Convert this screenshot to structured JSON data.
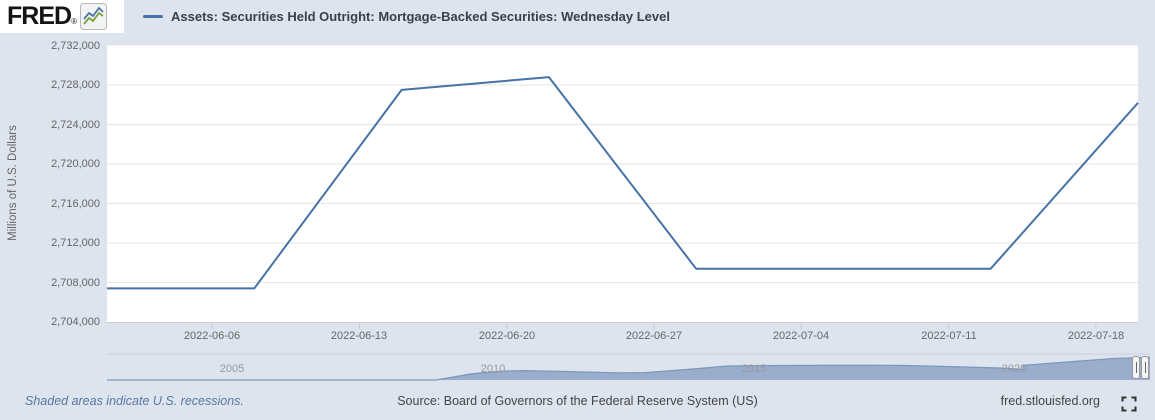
{
  "header": {
    "logo_text": "FRED",
    "logo_reg": "®",
    "legend_label": "Assets: Securities Held Outright: Mortgage-Backed Securities: Wednesday Level"
  },
  "footer": {
    "recession_note": "Shaded areas indicate U.S. recessions.",
    "source": "Source: Board of Governors of the Federal Reserve System (US)",
    "site": "fred.stlouisfed.org"
  },
  "colors": {
    "page_bg": "#dde4ee",
    "plot_bg": "#ffffff",
    "gridline": "#e6e6e6",
    "axis_line": "#ccd0d6",
    "tick": "#c6ccd4",
    "line": "#4572a7",
    "nav_fill": "#9aaecc",
    "nav_line": "#7e98bd",
    "nav_border": "#c9d1dc",
    "nav_label": "#999999"
  },
  "chart_data": {
    "type": "line",
    "title": "Assets: Securities Held Outright: Mortgage-Backed Securities: Wednesday Level",
    "ylabel": "Millions of U.S. Dollars",
    "ylim": [
      2704000,
      2732000
    ],
    "x_range": [
      "2022-06-01",
      "2022-07-20"
    ],
    "x": [
      "2022-06-01",
      "2022-06-08",
      "2022-06-15",
      "2022-06-22",
      "2022-06-29",
      "2022-07-06",
      "2022-07-13",
      "2022-07-20"
    ],
    "values": [
      2707400,
      2707400,
      2727500,
      2728800,
      2709400,
      2709400,
      2709400,
      2726200
    ],
    "yticks": [
      2704000,
      2708000,
      2712000,
      2716000,
      2720000,
      2724000,
      2728000,
      2732000
    ],
    "ytick_labels": [
      "2,704,000",
      "2,708,000",
      "2,712,000",
      "2,716,000",
      "2,720,000",
      "2,724,000",
      "2,728,000",
      "2,732,000"
    ],
    "ygrid": [
      2708000,
      2712000,
      2716000,
      2720000,
      2724000,
      2728000
    ],
    "xticks": [
      "2022-06-06",
      "2022-06-13",
      "2022-06-20",
      "2022-06-27",
      "2022-07-04",
      "2022-07-11",
      "2022-07-18"
    ],
    "grid": true,
    "legend_position": "top",
    "navigator": {
      "type": "area",
      "x_range": [
        2002.6,
        2022.6
      ],
      "ymax": 2760000,
      "year_labels": [
        2005,
        2010,
        2015,
        2020
      ],
      "x": [
        2002.6,
        2008.9,
        2009.1,
        2009.6,
        2010.2,
        2010.6,
        2011.3,
        2012.4,
        2012.9,
        2013.8,
        2014.5,
        2015.5,
        2016.8,
        2017.8,
        2018.8,
        2019.8,
        2020.1,
        2020.16,
        2020.17,
        2020.5,
        2021.2,
        2021.9,
        2022.6
      ],
      "values": [
        0,
        0,
        200000,
        750000,
        1060000,
        1120000,
        1030000,
        850000,
        870000,
        1300000,
        1680000,
        1740000,
        1770000,
        1750000,
        1600000,
        1420000,
        1300000,
        1250000,
        1750000,
        1920000,
        2250000,
        2580000,
        2730000
      ]
    }
  }
}
